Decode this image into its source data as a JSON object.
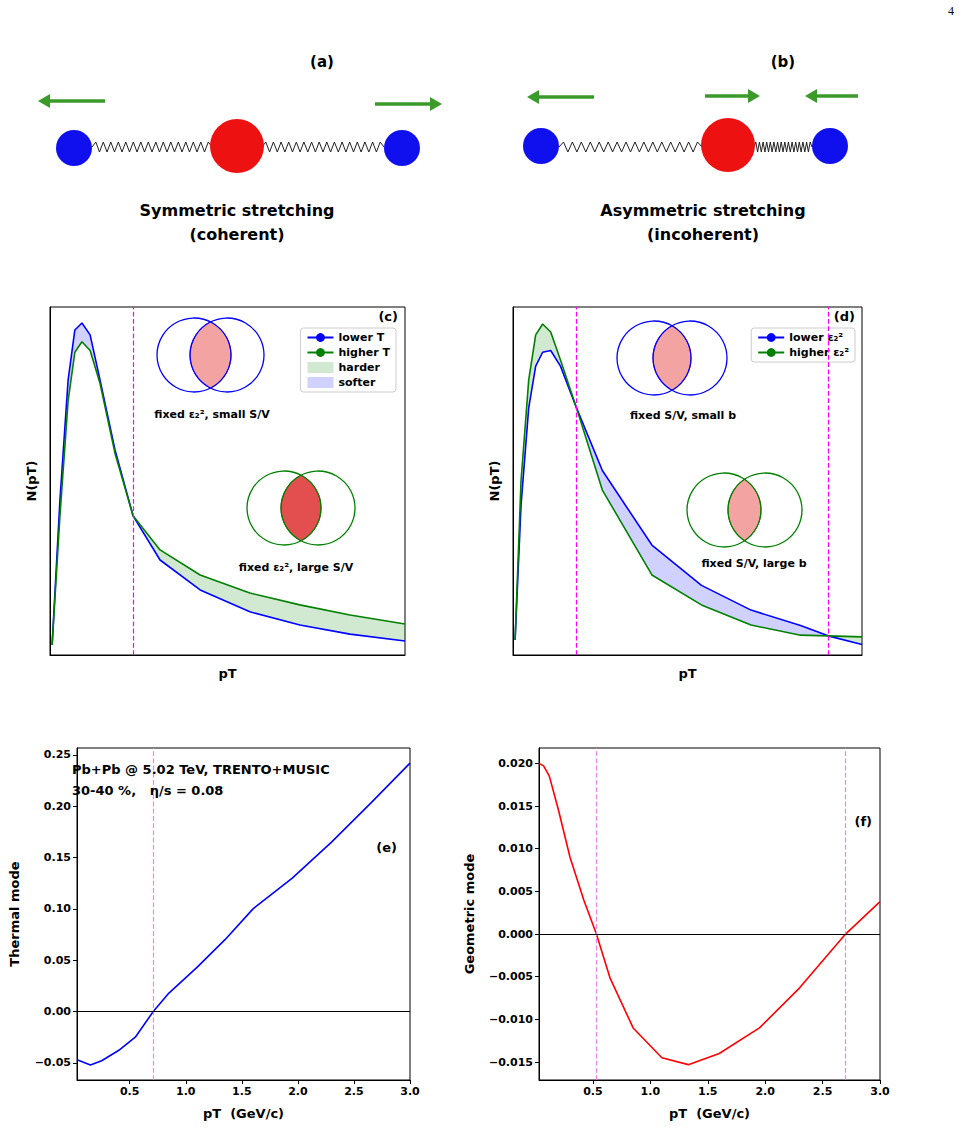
{
  "page_number": "4",
  "diagrams": [
    {
      "label": "(a)",
      "caption": [
        "Symmetric stretching",
        "(coherent)"
      ]
    },
    {
      "label": "(b)",
      "caption": [
        "Asymmetric stretching",
        "(incoherent)"
      ]
    }
  ],
  "chart_data": [
    {
      "type": "line",
      "title": "(c)",
      "xlabel": "pT",
      "ylabel": "N(pT)",
      "xlim": [
        0,
        10
      ],
      "ylim": [
        0,
        10
      ],
      "tick_labels": false,
      "grid": false,
      "legend": "upper right",
      "vlines": [
        2.34
      ],
      "annotations": [
        "fixed ε₂², small S/V",
        "fixed ε₂², large S/V"
      ],
      "x": [
        0.06,
        0.28,
        0.51,
        0.7,
        0.9,
        1.13,
        1.41,
        1.83,
        2.34,
        3.1,
        4.23,
        5.63,
        7.04,
        8.45,
        10
      ],
      "series": [
        {
          "name": "lower T",
          "color": "#0000ff",
          "values": [
            0.29,
            4.45,
            7.9,
            9.34,
            9.54,
            9.2,
            7.9,
            5.9,
            4.0,
            2.73,
            1.87,
            1.24,
            0.86,
            0.6,
            0.4
          ]
        },
        {
          "name": "higher T",
          "color": "#008000",
          "values": [
            0.29,
            4.0,
            7.3,
            8.7,
            9.0,
            8.75,
            7.8,
            5.8,
            4.0,
            3.02,
            2.3,
            1.78,
            1.44,
            1.15,
            0.89
          ]
        },
        {
          "name": "harder",
          "type": "area",
          "color": "#008000"
        },
        {
          "name": "softer",
          "type": "area",
          "color": "#0000ff"
        }
      ]
    },
    {
      "type": "line",
      "title": "(d)",
      "xlabel": "pT",
      "ylabel": "N(pT)",
      "xlim": [
        0,
        10
      ],
      "ylim": [
        0,
        10
      ],
      "tick_labels": false,
      "grid": false,
      "legend": "upper right",
      "vlines": [
        1.82,
        9.03
      ],
      "annotations": [
        "fixed S/V, small b",
        "fixed S/V, large b"
      ],
      "x": [
        0.06,
        0.23,
        0.45,
        0.65,
        0.85,
        1.08,
        1.36,
        1.82,
        2.56,
        3.98,
        5.4,
        6.82,
        8.24,
        9.03,
        10
      ],
      "series": [
        {
          "name": "lower ε₂²",
          "color": "#0000ff",
          "values": [
            0.43,
            4.3,
            7.1,
            8.3,
            8.7,
            8.75,
            8.3,
            7.1,
            5.3,
            3.16,
            2.0,
            1.29,
            0.85,
            0.55,
            0.3
          ]
        },
        {
          "name": "higher ε₂²",
          "color": "#008000",
          "values": [
            0.43,
            5.0,
            7.9,
            9.2,
            9.51,
            9.28,
            8.48,
            7.1,
            4.74,
            2.3,
            1.44,
            0.86,
            0.57,
            0.55,
            0.52
          ]
        },
        {
          "type": "area",
          "color": "#008000"
        },
        {
          "type": "area",
          "color": "#0000ff"
        }
      ]
    },
    {
      "type": "line",
      "title": "(e)",
      "xlabel": "pT  (GeV/c)",
      "ylabel": "Thermal mode",
      "xlim": [
        0.03,
        3.0
      ],
      "ylim": [
        -0.0667,
        0.2567
      ],
      "grid": false,
      "xticks": [
        0.5,
        {
          "value": 1.0,
          "label": "1.0"
        },
        1.5,
        {
          "value": 2.0,
          "label": "2.0"
        },
        2.5,
        {
          "value": 3.0,
          "label": "3.0"
        }
      ],
      "yticks": [
        {
          "value": -0.05,
          "label": "−0.05"
        },
        {
          "value": 0,
          "label": "0.00"
        },
        0.05,
        {
          "value": 0.1,
          "label": "0.10"
        },
        0.15,
        {
          "value": 0.2,
          "label": "0.20"
        },
        0.25
      ],
      "vlines": [
        0.71
      ],
      "hlines": [
        0
      ],
      "annotations": [
        "Pb+Pb @ 5.02 TeV, TRENTO+MUSIC",
        "30-40 %,   η/s = 0.08"
      ],
      "x": [
        0.03,
        0.15,
        0.25,
        0.4,
        0.55,
        0.71,
        0.85,
        1.1,
        1.35,
        1.6,
        1.95,
        2.3,
        2.65,
        3.0
      ],
      "series": [
        {
          "color": "#0000ff",
          "values": [
            -0.047,
            -0.052,
            -0.048,
            -0.038,
            -0.025,
            0.0,
            0.018,
            0.043,
            0.07,
            0.1,
            0.13,
            0.165,
            0.203,
            0.242
          ]
        }
      ]
    },
    {
      "type": "line",
      "title": "(f)",
      "xlabel": "pT  (GeV/c)",
      "ylabel": "Geometric mode",
      "xlim": [
        0.03,
        3.0
      ],
      "ylim": [
        -0.0171,
        0.0218
      ],
      "grid": false,
      "xticks": [
        0.5,
        {
          "value": 1.0,
          "label": "1.0"
        },
        1.5,
        {
          "value": 2.0,
          "label": "2.0"
        },
        2.5,
        {
          "value": 3.0,
          "label": "3.0"
        }
      ],
      "yticks": [
        {
          "value": -0.015,
          "label": "−0.015"
        },
        {
          "value": -0.01,
          "label": "−0.010"
        },
        {
          "value": -0.005,
          "label": "−0.005"
        },
        {
          "value": 0,
          "label": "0.000"
        },
        0.005,
        {
          "value": 0.01,
          "label": "0.010"
        },
        0.015,
        {
          "value": 0.02,
          "label": "0.020"
        }
      ],
      "vlines": [
        0.53,
        2.7
      ],
      "hlines": [
        0
      ],
      "x": [
        0.03,
        0.07,
        0.12,
        0.2,
        0.3,
        0.42,
        0.53,
        0.65,
        0.85,
        1.1,
        1.33,
        1.6,
        1.95,
        2.3,
        2.7,
        3.0
      ],
      "series": [
        {
          "color": "#ff0000",
          "values": [
            0.02,
            0.0197,
            0.0185,
            0.0145,
            0.009,
            0.004,
            0.0,
            -0.0052,
            -0.011,
            -0.0145,
            -0.0153,
            -0.014,
            -0.011,
            -0.0063,
            0.0,
            0.0038
          ]
        }
      ]
    }
  ]
}
